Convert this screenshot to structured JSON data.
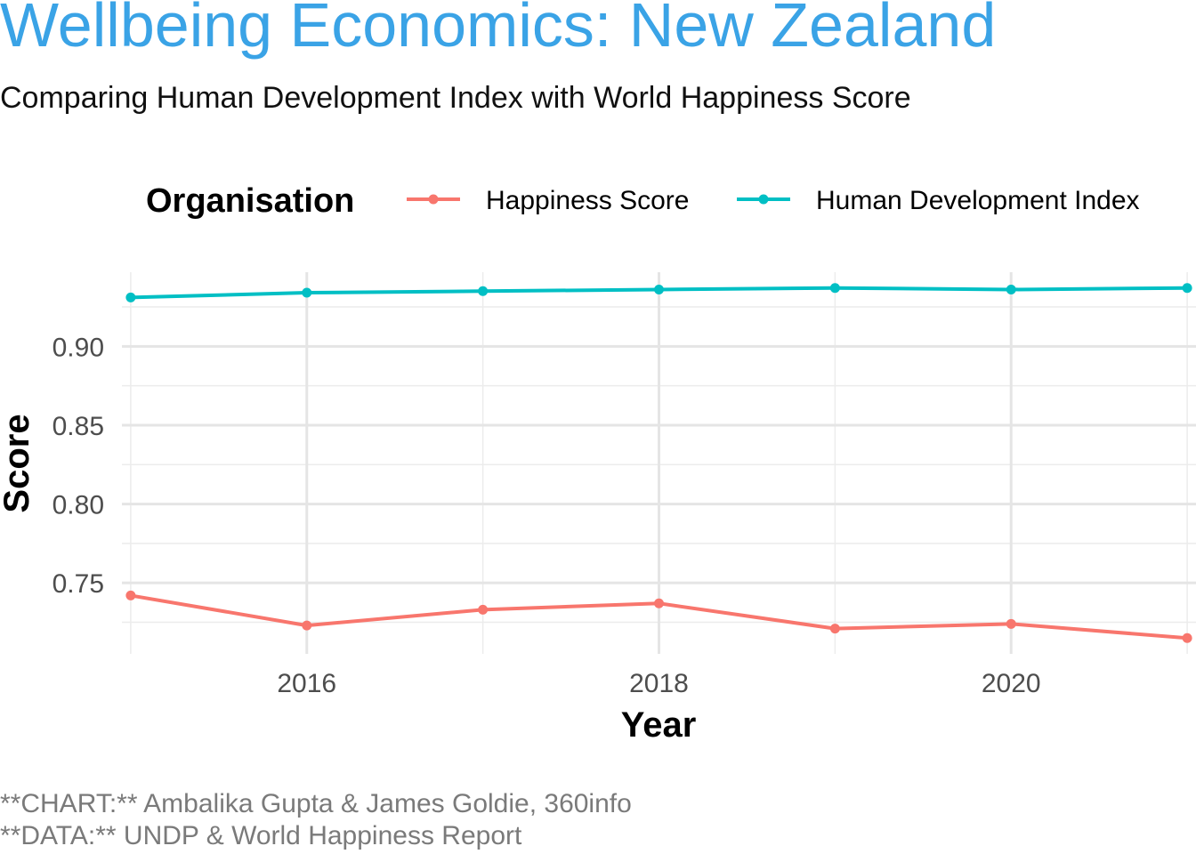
{
  "title": "Wellbeing Economics: New Zealand",
  "subtitle": "Comparing Human Development Index with World Happiness Score",
  "caption": {
    "line1": "**CHART:** Ambalika Gupta & James Goldie, 360info",
    "line2": "**DATA:** UNDP & World Happiness Report"
  },
  "chart_data": {
    "type": "line",
    "title": "Wellbeing Economics: New Zealand",
    "subtitle": "Comparing Human Development Index with World Happiness Score",
    "xlabel": "Year",
    "ylabel": "Score",
    "legend_title": "Organisation",
    "legend_position": "top",
    "grid": true,
    "x": [
      2015,
      2016,
      2017,
      2018,
      2019,
      2020,
      2021
    ],
    "xlim": [
      2014.95,
      2021.05
    ],
    "ylim": [
      0.705,
      0.947
    ],
    "x_ticks": [
      2016,
      2018,
      2020
    ],
    "x_tick_labels": [
      "2016",
      "2018",
      "2020"
    ],
    "y_ticks": [
      0.75,
      0.8,
      0.85,
      0.9
    ],
    "y_tick_labels": [
      "0.75",
      "0.80",
      "0.85",
      "0.90"
    ],
    "series": [
      {
        "name": "Happiness Score",
        "color": "#f8766d",
        "values": [
          0.742,
          0.723,
          0.733,
          0.737,
          0.721,
          0.724,
          0.715
        ]
      },
      {
        "name": "Human Development Index",
        "color": "#00bfc4",
        "values": [
          0.931,
          0.934,
          0.935,
          0.936,
          0.937,
          0.936,
          0.937
        ]
      }
    ]
  }
}
